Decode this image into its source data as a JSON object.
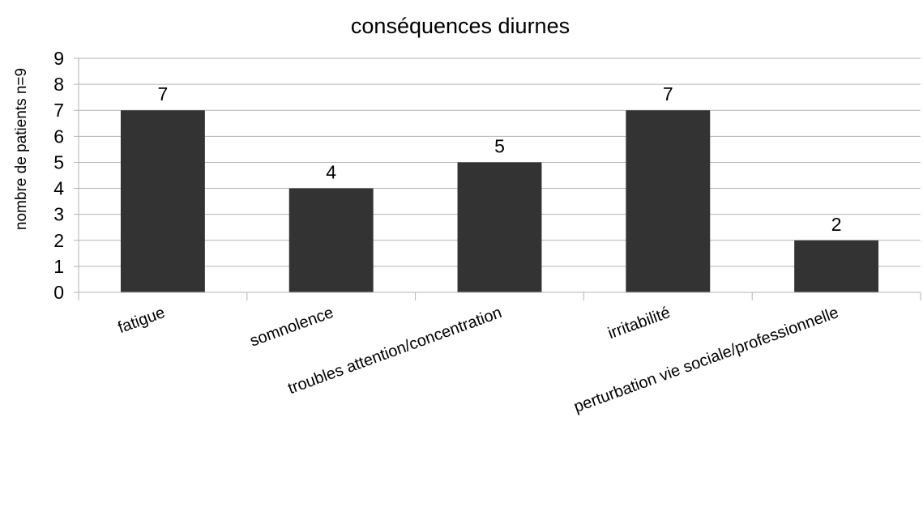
{
  "chart_data": {
    "type": "bar",
    "title": "conséquences diurnes",
    "xlabel": "",
    "ylabel": "nombre de patients n=9",
    "ylim": [
      0,
      9
    ],
    "yticks": [
      0,
      1,
      2,
      3,
      4,
      5,
      6,
      7,
      8,
      9
    ],
    "grid": true,
    "legend": "none",
    "categories": [
      "fatigue",
      "somnolence",
      "troubles attention/concentration",
      "irritabilité",
      "perturbation vie sociale/professionnelle"
    ],
    "values": [
      7,
      4,
      5,
      7,
      2
    ],
    "data_labels": [
      "7",
      "4",
      "5",
      "7",
      "2"
    ],
    "bar_color": "#333333",
    "grid_color": "#b3b3b3"
  }
}
